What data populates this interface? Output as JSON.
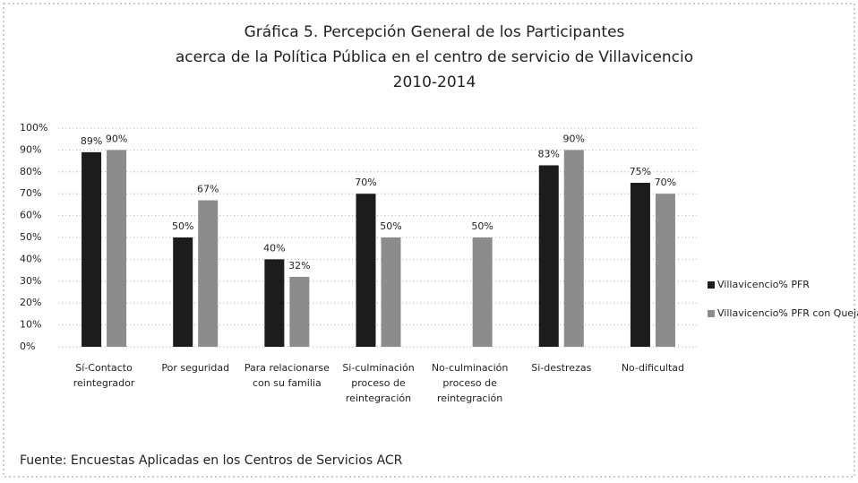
{
  "chart_data": {
    "type": "bar",
    "title": [
      "Gráfica 5. Percepción General de los Participantes",
      "acerca de la Política Pública en el centro de servicio de Villavicencio",
      "2010-2014"
    ],
    "categories": [
      "Sí-Contacto reintegrador",
      "Por seguridad",
      "Para relacionarse con su familia",
      "Si-culminación proceso de reintegración",
      "No-culminación proceso de reintegración",
      "Si-destrezas",
      "No-dificultad"
    ],
    "series": [
      {
        "name": "Villavicencio% PFR",
        "color": "#1c1c1c",
        "values": [
          89,
          50,
          40,
          70,
          null,
          83,
          75
        ],
        "value_labels": [
          "89%",
          "50%",
          "40%",
          "70%",
          null,
          "83%",
          "75%"
        ]
      },
      {
        "name": "Villavicencio% PFR con Quejas",
        "color": "#8c8c8c",
        "values": [
          90,
          67,
          32,
          50,
          50,
          90,
          70
        ],
        "value_labels": [
          "90%",
          "67%",
          "32%",
          "50%",
          "50%",
          "90%",
          "70%"
        ]
      }
    ],
    "ylim": [
      0,
      100
    ],
    "yticks": [
      {
        "value": 0,
        "label": "0%"
      },
      {
        "value": 10,
        "label": "10%"
      },
      {
        "value": 20,
        "label": "20%"
      },
      {
        "value": 30,
        "label": "30%"
      },
      {
        "value": 40,
        "label": "40%"
      },
      {
        "value": 50,
        "label": "50%"
      },
      {
        "value": 60,
        "label": "60%"
      },
      {
        "value": 70,
        "label": "70%"
      },
      {
        "value": 80,
        "label": "80%"
      },
      {
        "value": 90,
        "label": "90%"
      },
      {
        "value": 100,
        "label": "100%"
      }
    ],
    "grid": true,
    "legend": "right",
    "source": "Fuente: Encuestas  Aplicadas en los Centros de Servicios ACR"
  }
}
